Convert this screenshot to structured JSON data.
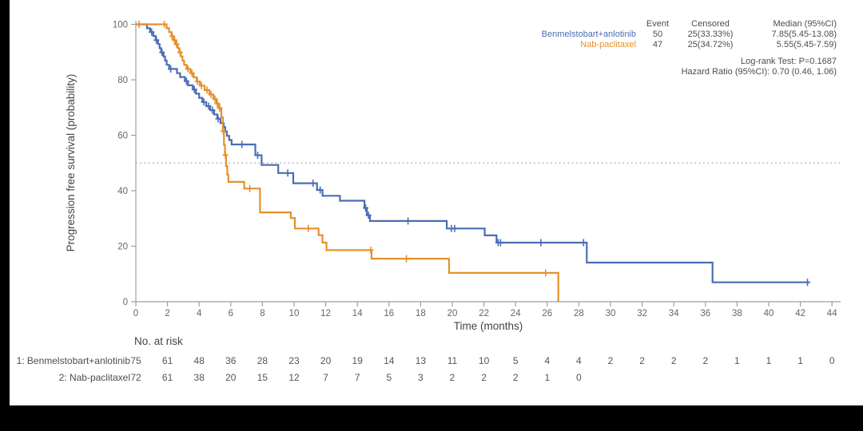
{
  "chart_data": {
    "type": "km_survival_step",
    "x_axis": {
      "label": "Time (months)",
      "range": [
        0,
        44
      ],
      "ticks": [
        0,
        2,
        4,
        6,
        8,
        10,
        12,
        14,
        16,
        18,
        20,
        22,
        24,
        26,
        28,
        30,
        32,
        34,
        36,
        38,
        40,
        42,
        44
      ]
    },
    "y_axis": {
      "label": "Progression free survival (probability)",
      "range": [
        0,
        100
      ],
      "ticks": [
        0,
        20,
        40,
        60,
        80,
        100
      ]
    },
    "reference_line": {
      "y": 50,
      "style": "dotted"
    },
    "series": [
      {
        "name": "Benmelstobart+anlotinib",
        "color": "#4a6db4",
        "end_time": 42.6,
        "steps": [
          [
            0,
            100
          ],
          [
            0.7,
            98.6
          ],
          [
            0.9,
            97.2
          ],
          [
            1.1,
            95.8
          ],
          [
            1.25,
            94.3
          ],
          [
            1.4,
            92.9
          ],
          [
            1.5,
            91.4
          ],
          [
            1.6,
            89.9
          ],
          [
            1.75,
            88.4
          ],
          [
            1.85,
            86.9
          ],
          [
            1.95,
            85.4
          ],
          [
            2.1,
            83.9
          ],
          [
            2.6,
            82.4
          ],
          [
            2.8,
            81.0
          ],
          [
            3.1,
            79.5
          ],
          [
            3.3,
            78.0
          ],
          [
            3.6,
            76.5
          ],
          [
            3.8,
            75.0
          ],
          [
            4.0,
            73.5
          ],
          [
            4.2,
            72.0
          ],
          [
            4.45,
            70.5
          ],
          [
            4.7,
            69.0
          ],
          [
            4.95,
            67.5
          ],
          [
            5.15,
            66.0
          ],
          [
            5.35,
            64.4
          ],
          [
            5.55,
            62.9
          ],
          [
            5.65,
            61.4
          ],
          [
            5.75,
            59.8
          ],
          [
            5.9,
            58.3
          ],
          [
            6.05,
            56.7
          ],
          [
            7.55,
            52.8
          ],
          [
            7.95,
            49.3
          ],
          [
            9.0,
            46.4
          ],
          [
            9.95,
            42.7
          ],
          [
            11.45,
            40.3
          ],
          [
            11.8,
            38.2
          ],
          [
            12.9,
            36.4
          ],
          [
            14.45,
            33.8
          ],
          [
            14.6,
            31.2
          ],
          [
            14.8,
            29.1
          ],
          [
            19.65,
            26.4
          ],
          [
            22.05,
            23.9
          ],
          [
            22.8,
            21.3
          ],
          [
            28.5,
            14.1
          ],
          [
            36.45,
            7.0
          ]
        ],
        "censor_marks": [
          [
            1.0,
            97.2
          ],
          [
            1.3,
            94.3
          ],
          [
            1.65,
            89.9
          ],
          [
            2.2,
            83.9
          ],
          [
            3.2,
            79.5
          ],
          [
            3.7,
            76.5
          ],
          [
            4.3,
            72.0
          ],
          [
            4.6,
            70.5
          ],
          [
            4.85,
            69.0
          ],
          [
            5.2,
            66.0
          ],
          [
            6.7,
            56.7
          ],
          [
            7.7,
            52.8
          ],
          [
            9.6,
            46.4
          ],
          [
            11.2,
            42.7
          ],
          [
            11.65,
            40.3
          ],
          [
            14.52,
            33.8
          ],
          [
            14.7,
            31.2
          ],
          [
            17.2,
            29.1
          ],
          [
            19.95,
            26.4
          ],
          [
            20.15,
            26.4
          ],
          [
            22.9,
            21.3
          ],
          [
            23.05,
            21.3
          ],
          [
            25.6,
            21.3
          ],
          [
            28.3,
            21.3
          ],
          [
            42.45,
            7.0
          ]
        ]
      },
      {
        "name": "Nab-paclitaxel",
        "color": "#e5912d",
        "end_time": 26.7,
        "steps": [
          [
            0,
            100
          ],
          [
            1.95,
            98.6
          ],
          [
            2.1,
            97.2
          ],
          [
            2.25,
            95.7
          ],
          [
            2.4,
            94.3
          ],
          [
            2.5,
            92.8
          ],
          [
            2.65,
            91.4
          ],
          [
            2.75,
            89.9
          ],
          [
            2.85,
            88.4
          ],
          [
            2.95,
            86.9
          ],
          [
            3.05,
            85.4
          ],
          [
            3.2,
            83.9
          ],
          [
            3.45,
            82.4
          ],
          [
            3.65,
            80.9
          ],
          [
            3.85,
            79.4
          ],
          [
            4.05,
            77.9
          ],
          [
            4.35,
            76.3
          ],
          [
            4.65,
            74.7
          ],
          [
            4.9,
            73.1
          ],
          [
            5.1,
            71.4
          ],
          [
            5.25,
            69.8
          ],
          [
            5.4,
            66.5
          ],
          [
            5.5,
            61.5
          ],
          [
            5.57,
            56.5
          ],
          [
            5.63,
            52.9
          ],
          [
            5.7,
            48.9
          ],
          [
            5.78,
            45.8
          ],
          [
            5.85,
            43.2
          ],
          [
            6.85,
            40.8
          ],
          [
            7.85,
            32.2
          ],
          [
            9.8,
            30.2
          ],
          [
            10.05,
            26.4
          ],
          [
            11.55,
            24.0
          ],
          [
            11.8,
            21.3
          ],
          [
            12.05,
            18.6
          ],
          [
            14.9,
            15.5
          ],
          [
            19.8,
            10.4
          ],
          [
            26.7,
            0
          ]
        ],
        "censor_marks": [
          [
            0.2,
            100
          ],
          [
            1.8,
            100
          ],
          [
            2.3,
            95.7
          ],
          [
            2.45,
            94.3
          ],
          [
            2.58,
            92.8
          ],
          [
            2.8,
            89.9
          ],
          [
            3.3,
            83.9
          ],
          [
            3.55,
            82.4
          ],
          [
            3.9,
            79.4
          ],
          [
            4.15,
            77.9
          ],
          [
            4.5,
            76.3
          ],
          [
            4.75,
            74.7
          ],
          [
            5.0,
            73.1
          ],
          [
            5.15,
            71.4
          ],
          [
            5.3,
            69.8
          ],
          [
            5.52,
            61.5
          ],
          [
            5.66,
            52.9
          ],
          [
            7.2,
            40.8
          ],
          [
            10.9,
            26.4
          ],
          [
            14.85,
            18.6
          ],
          [
            17.1,
            15.5
          ],
          [
            25.9,
            10.4
          ]
        ]
      }
    ],
    "legend": {
      "columns": [
        "Event",
        "Censored",
        "Median (95%CI)"
      ],
      "rows": [
        {
          "name": "Benmelstobart+anlotinib",
          "event": "50",
          "censored": "25(33.33%)",
          "median": "7.85(5.45-13.08)"
        },
        {
          "name": "Nab-paclitaxel",
          "event": "47",
          "censored": "25(34.72%)",
          "median": "5.55(5.45-7.59)"
        }
      ],
      "stats": [
        "Log-rank Test: P=0.1687",
        "Hazard Ratio (95%CI): 0.70 (0.46, 1.06)"
      ]
    },
    "risk_table": {
      "title": "No. at risk",
      "rows": [
        {
          "label": "1: Benmelstobart+anlotinib",
          "values": [
            75,
            61,
            48,
            36,
            28,
            23,
            20,
            19,
            14,
            13,
            11,
            10,
            5,
            4,
            4,
            2,
            2,
            2,
            2,
            1,
            1,
            1,
            0
          ]
        },
        {
          "label": "2: Nab-paclitaxel",
          "values": [
            72,
            61,
            38,
            20,
            15,
            12,
            7,
            7,
            5,
            3,
            2,
            2,
            2,
            1,
            0
          ]
        }
      ]
    }
  }
}
